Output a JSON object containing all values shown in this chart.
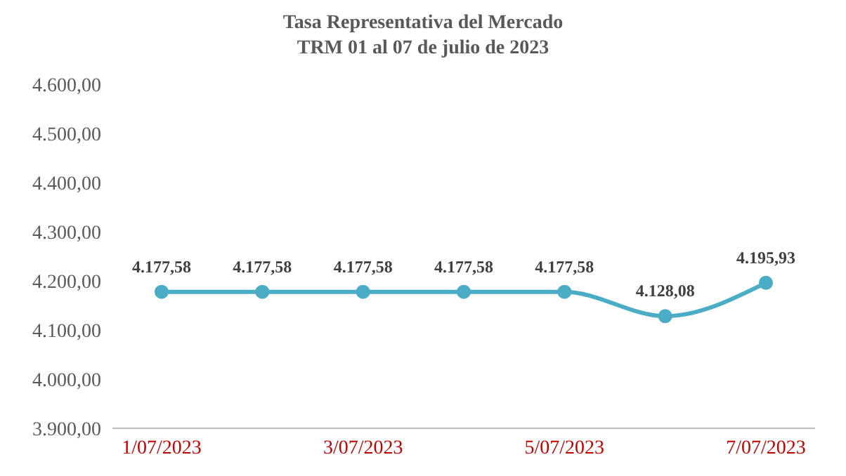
{
  "chart_data": {
    "type": "line",
    "title": "Tasa Representativa del Mercado",
    "subtitle": "TRM 01 al 07 de julio de 2023",
    "categories": [
      "1/07/2023",
      null,
      "3/07/2023",
      null,
      "5/07/2023",
      null,
      "7/07/2023"
    ],
    "series": [
      {
        "color": "#4bacc6",
        "values": [
          4177.58,
          4177.58,
          4177.58,
          4177.58,
          4177.58,
          4128.08,
          4195.93
        ],
        "value_labels": [
          "4.177,58",
          "4.177,58",
          "4.177,58",
          "4.177,58",
          "4.177,58",
          "4.128,08",
          "4.195,93"
        ]
      }
    ],
    "ylim": [
      3900,
      4600
    ],
    "yticks": [
      {
        "value": 3900,
        "label": "3.900,00"
      },
      {
        "value": 4000,
        "label": "4.000,00"
      },
      {
        "value": 4100,
        "label": "4.100,00"
      },
      {
        "value": 4200,
        "label": "4.200,00"
      },
      {
        "value": 4300,
        "label": "4.300,00"
      },
      {
        "value": 4400,
        "label": "4.400,00"
      },
      {
        "value": 4500,
        "label": "4.500,00"
      },
      {
        "value": 4600,
        "label": "4.600,00"
      }
    ],
    "grid": false,
    "legend": false,
    "marker": "circle",
    "line_style": "solid"
  }
}
